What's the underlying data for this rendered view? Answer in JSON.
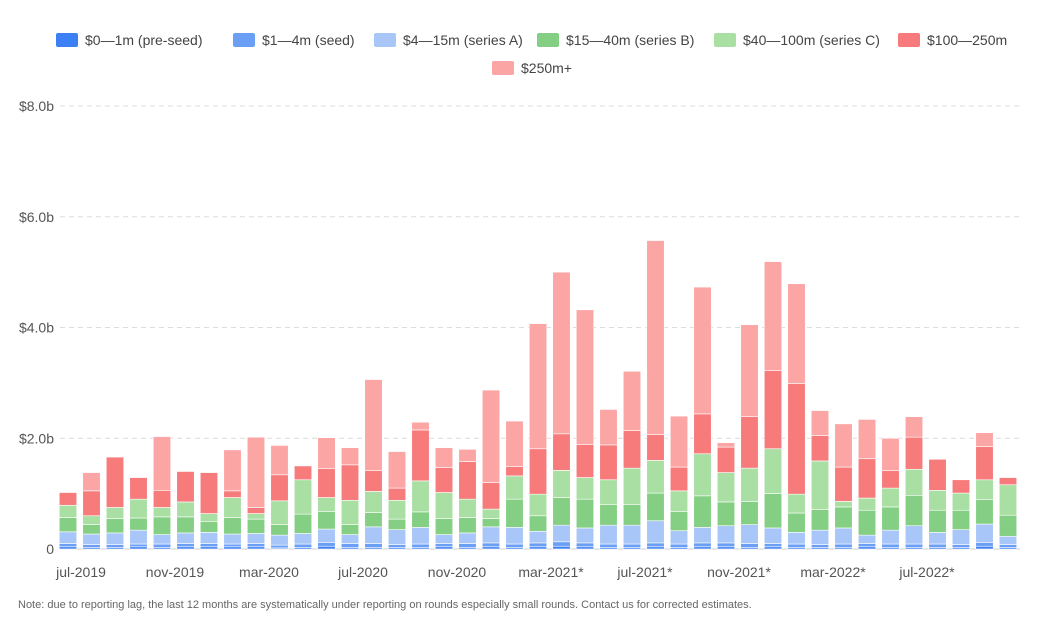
{
  "chart_data": {
    "type": "bar",
    "stacked": true,
    "title": "",
    "xlabel": "",
    "ylabel": "",
    "ylim": [
      0,
      8.0
    ],
    "y_ticks": [
      {
        "value": 0,
        "label": "0"
      },
      {
        "value": 2,
        "label": "$2.0b"
      },
      {
        "value": 4,
        "label": "$4.0b"
      },
      {
        "value": 6,
        "label": "$6.0b"
      },
      {
        "value": 8,
        "label": "$8.0b"
      }
    ],
    "grid": true,
    "legend_position": "top",
    "x_tick_labels": [
      {
        "index": 0,
        "label": "jul-2019"
      },
      {
        "index": 4,
        "label": "nov-2019"
      },
      {
        "index": 8,
        "label": "mar-2020"
      },
      {
        "index": 12,
        "label": "jul-2020"
      },
      {
        "index": 16,
        "label": "nov-2020"
      },
      {
        "index": 20,
        "label": "mar-2021*"
      },
      {
        "index": 24,
        "label": "jul-2021*"
      },
      {
        "index": 28,
        "label": "nov-2021*"
      },
      {
        "index": 32,
        "label": "mar-2022*"
      },
      {
        "index": 36,
        "label": "jul-2022*"
      }
    ],
    "categories": [
      "jul-2019",
      "aug-2019",
      "sep-2019",
      "oct-2019",
      "nov-2019",
      "dec-2019",
      "jan-2020",
      "feb-2020",
      "mar-2020",
      "apr-2020",
      "may-2020",
      "jun-2020",
      "jul-2020",
      "aug-2020",
      "sep-2020",
      "oct-2020",
      "nov-2020",
      "dec-2020",
      "jan-2021",
      "feb-2021",
      "mar-2021*",
      "apr-2021*",
      "may-2021*",
      "jun-2021*",
      "jul-2021*",
      "aug-2021*",
      "sep-2021*",
      "oct-2021*",
      "nov-2021*",
      "dec-2021*",
      "jan-2022*",
      "feb-2022*",
      "mar-2022*",
      "apr-2022*",
      "may-2022*",
      "jun-2022*",
      "jul-2022*",
      "aug-2022*",
      "sep-2022*",
      "oct-2022*",
      "nov-2022*"
    ],
    "series": [
      {
        "name": "$0—1m (pre-seed)",
        "color": "#3d7ff5",
        "values": [
          0.04,
          0.03,
          0.03,
          0.04,
          0.03,
          0.04,
          0.04,
          0.04,
          0.04,
          0.02,
          0.03,
          0.05,
          0.03,
          0.03,
          0.03,
          0.03,
          0.04,
          0.03,
          0.04,
          0.03,
          0.04,
          0.05,
          0.04,
          0.03,
          0.03,
          0.04,
          0.03,
          0.04,
          0.04,
          0.03,
          0.04,
          0.03,
          0.03,
          0.03,
          0.04,
          0.03,
          0.03,
          0.03,
          0.03,
          0.05,
          0.03
        ]
      },
      {
        "name": "$1—4m (seed)",
        "color": "#6b9ff5",
        "values": [
          0.06,
          0.05,
          0.05,
          0.05,
          0.06,
          0.06,
          0.06,
          0.05,
          0.06,
          0.05,
          0.06,
          0.07,
          0.07,
          0.07,
          0.05,
          0.06,
          0.06,
          0.07,
          0.07,
          0.06,
          0.07,
          0.08,
          0.07,
          0.06,
          0.06,
          0.07,
          0.06,
          0.07,
          0.07,
          0.07,
          0.06,
          0.06,
          0.05,
          0.06,
          0.06,
          0.06,
          0.06,
          0.06,
          0.05,
          0.07,
          0.05
        ]
      },
      {
        "name": "$4—15m (series A)",
        "color": "#a8c6f7",
        "values": [
          0.21,
          0.19,
          0.21,
          0.25,
          0.17,
          0.19,
          0.2,
          0.18,
          0.18,
          0.18,
          0.19,
          0.24,
          0.16,
          0.3,
          0.27,
          0.3,
          0.16,
          0.19,
          0.29,
          0.3,
          0.21,
          0.3,
          0.27,
          0.34,
          0.34,
          0.4,
          0.24,
          0.28,
          0.31,
          0.34,
          0.28,
          0.21,
          0.26,
          0.29,
          0.15,
          0.25,
          0.33,
          0.21,
          0.27,
          0.33,
          0.15
        ]
      },
      {
        "name": "$15—40m (series B)",
        "color": "#84cf83",
        "values": [
          0.26,
          0.17,
          0.26,
          0.22,
          0.32,
          0.29,
          0.2,
          0.3,
          0.26,
          0.19,
          0.35,
          0.32,
          0.18,
          0.26,
          0.19,
          0.28,
          0.29,
          0.28,
          0.15,
          0.51,
          0.28,
          0.5,
          0.52,
          0.37,
          0.37,
          0.5,
          0.35,
          0.57,
          0.43,
          0.42,
          0.62,
          0.35,
          0.37,
          0.38,
          0.45,
          0.42,
          0.55,
          0.4,
          0.35,
          0.44,
          0.38
        ]
      },
      {
        "name": "$40—100m (series C)",
        "color": "#a9dfa3",
        "values": [
          0.22,
          0.16,
          0.2,
          0.34,
          0.17,
          0.27,
          0.14,
          0.36,
          0.1,
          0.43,
          0.62,
          0.25,
          0.44,
          0.38,
          0.34,
          0.56,
          0.47,
          0.33,
          0.17,
          0.42,
          0.39,
          0.49,
          0.39,
          0.45,
          0.66,
          0.59,
          0.37,
          0.76,
          0.53,
          0.6,
          0.81,
          0.34,
          0.88,
          0.1,
          0.22,
          0.34,
          0.47,
          0.36,
          0.31,
          0.36,
          0.55
        ]
      },
      {
        "name": "$100—250m",
        "color": "#f77b7b",
        "values": [
          0.23,
          0.45,
          0.91,
          0.39,
          0.31,
          0.55,
          0.74,
          0.12,
          0.11,
          0.47,
          0.25,
          0.52,
          0.64,
          0.38,
          0.22,
          0.92,
          0.45,
          0.68,
          0.48,
          0.17,
          0.82,
          0.66,
          0.6,
          0.63,
          0.68,
          0.47,
          0.43,
          0.72,
          0.46,
          0.93,
          1.41,
          2.0,
          0.46,
          0.62,
          0.71,
          0.32,
          0.58,
          0.56,
          0.24,
          0.6,
          0.13
        ]
      },
      {
        "name": "$250m+",
        "color": "#fca5a5",
        "values": [
          0.0,
          0.33,
          0.0,
          0.0,
          0.97,
          0.0,
          0.0,
          0.74,
          1.27,
          0.53,
          0.0,
          0.56,
          0.31,
          1.64,
          0.66,
          0.14,
          0.36,
          0.22,
          1.67,
          0.82,
          2.26,
          2.92,
          2.43,
          0.64,
          1.07,
          3.5,
          0.92,
          2.29,
          0.08,
          1.66,
          1.97,
          1.8,
          0.45,
          0.78,
          0.71,
          0.58,
          0.37,
          0.0,
          0.0,
          0.25,
          0.0
        ]
      }
    ]
  },
  "note": "Note: due to reporting lag, the last 12 months are systematically under reporting on rounds especially small rounds. Contact us for corrected estimates."
}
